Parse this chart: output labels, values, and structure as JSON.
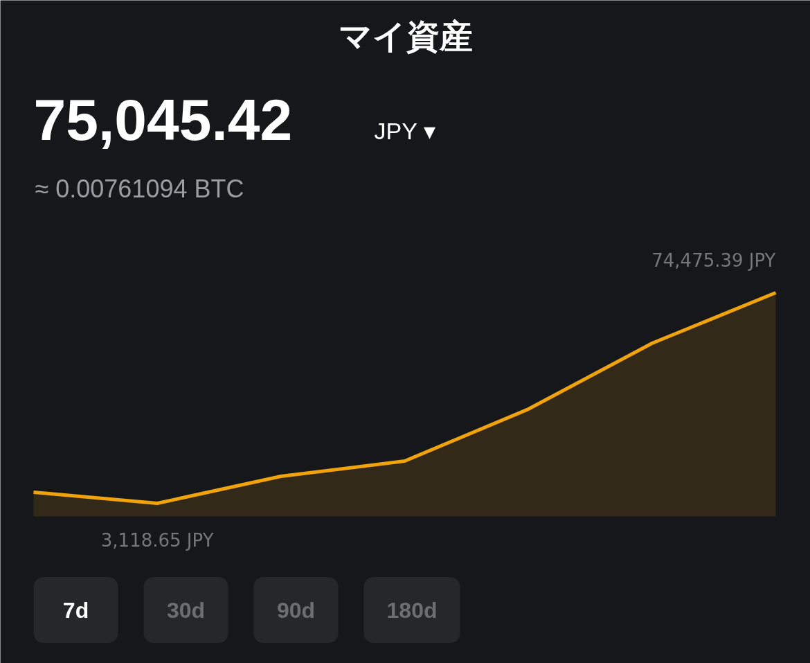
{
  "chart_data": {
    "type": "area",
    "title": "マイ資産",
    "subtitle": "75,045.42",
    "categories": [
      null,
      null,
      null,
      null,
      null,
      null,
      null
    ],
    "series": [
      {
        "color": "#f0a30a",
        "values": [
          6874,
          3118.65,
          12272,
          17436,
          35038,
          57335,
          74475.39
        ],
        "value_labels": [
          null,
          "3,118.65 JPY",
          null,
          null,
          null,
          null,
          "74,475.39 JPY"
        ]
      }
    ],
    "annotations": [
      "JPY ▾",
      "≈ 0.00761094 BTC",
      "7d",
      "30d",
      "90d",
      "180d"
    ]
  }
}
